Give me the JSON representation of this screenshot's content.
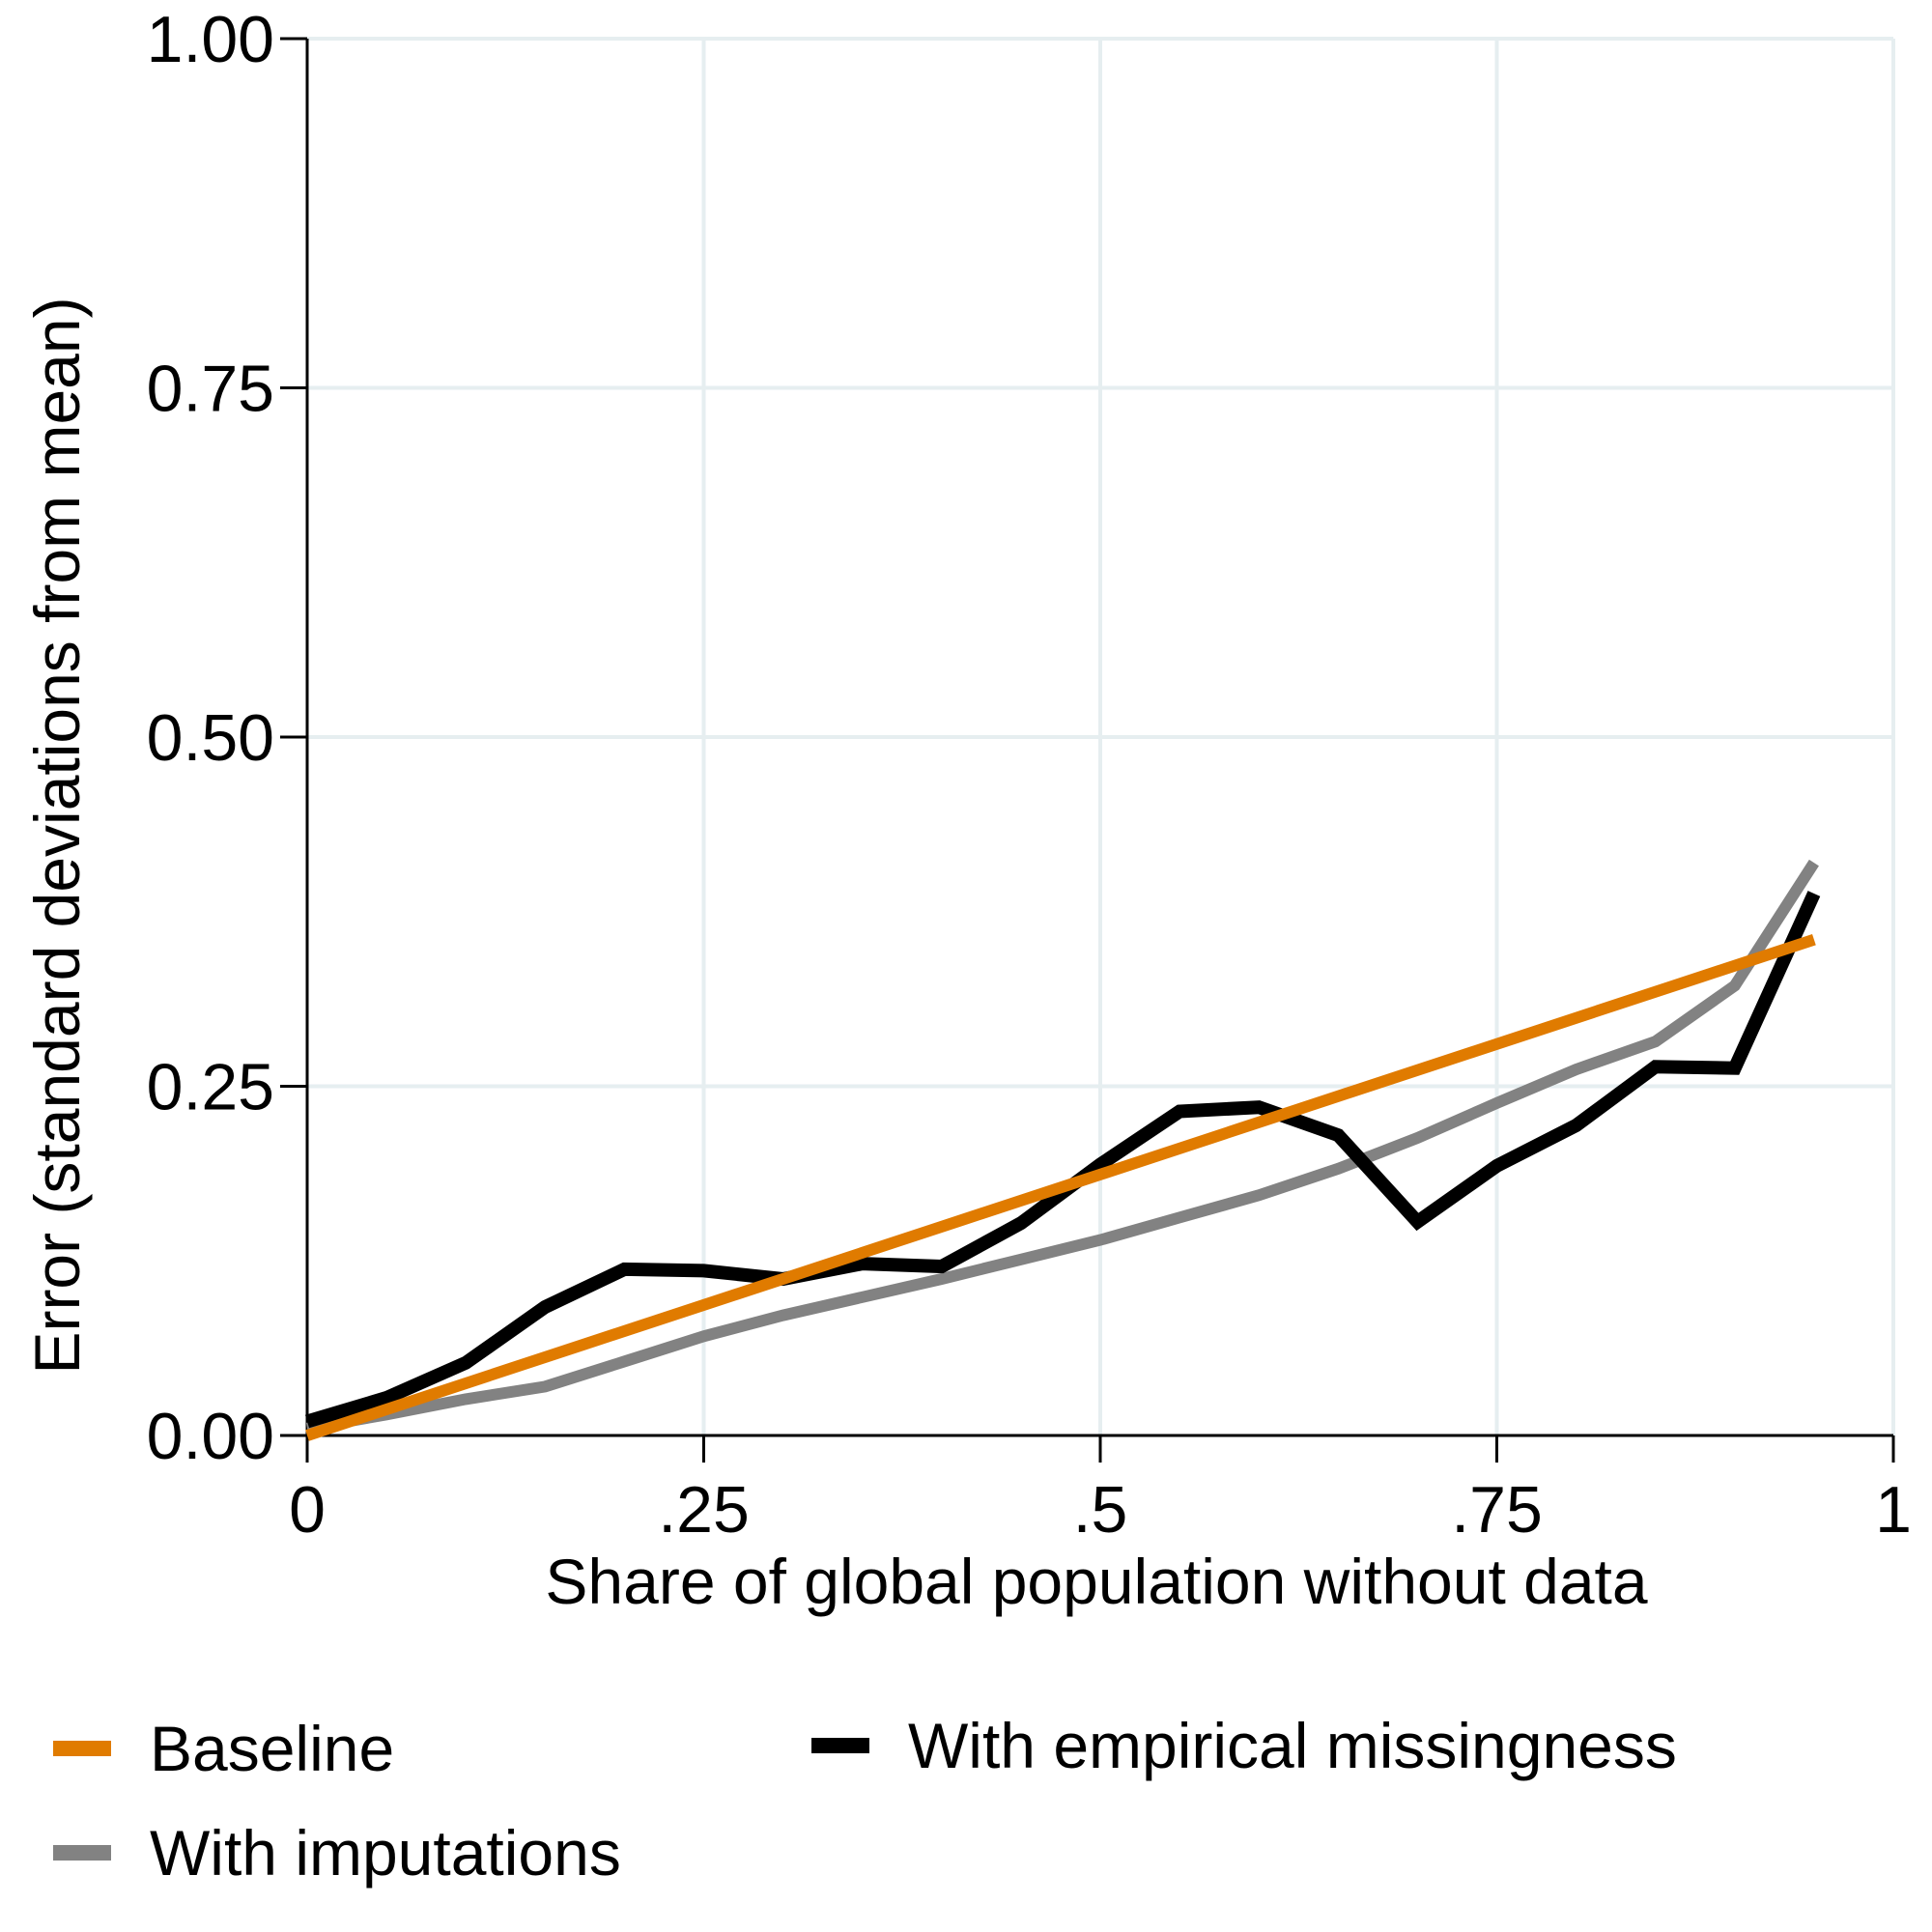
{
  "chart_data": {
    "type": "line",
    "xlabel": "Share of global population without data",
    "ylabel": "Error (standard deviations from mean)",
    "xlim": [
      0,
      1
    ],
    "ylim": [
      0,
      1
    ],
    "x_ticks": [
      0,
      0.25,
      0.5,
      0.75,
      1
    ],
    "x_tick_labels": [
      "0",
      ".25",
      ".5",
      ".75",
      "1"
    ],
    "y_ticks": [
      0,
      0.25,
      0.5,
      0.75,
      1
    ],
    "y_tick_labels": [
      "0.00",
      "0.25",
      "0.50",
      "0.75",
      "1.00"
    ],
    "grid": true,
    "legend_position": "bottom",
    "series": [
      {
        "name": "Baseline",
        "color": "#E07B00",
        "x": [
          0,
          0.95
        ],
        "y": [
          0.0,
          0.355
        ]
      },
      {
        "name": "With empirical missingness",
        "color": "#000000",
        "x": [
          0,
          0.05,
          0.1,
          0.15,
          0.2,
          0.25,
          0.3,
          0.35,
          0.4,
          0.45,
          0.5,
          0.55,
          0.6,
          0.65,
          0.7,
          0.75,
          0.8,
          0.85,
          0.9,
          0.95
        ],
        "y": [
          0.01,
          0.027,
          0.052,
          0.092,
          0.119,
          0.118,
          0.112,
          0.123,
          0.121,
          0.152,
          0.194,
          0.232,
          0.235,
          0.215,
          0.153,
          0.193,
          0.222,
          0.264,
          0.263,
          0.388
        ]
      },
      {
        "name": "With imputations",
        "color": "#828282",
        "x": [
          0,
          0.05,
          0.1,
          0.15,
          0.2,
          0.25,
          0.3,
          0.35,
          0.4,
          0.45,
          0.5,
          0.55,
          0.6,
          0.65,
          0.7,
          0.75,
          0.8,
          0.85,
          0.9,
          0.95
        ],
        "y": [
          0.005,
          0.015,
          0.026,
          0.035,
          0.053,
          0.071,
          0.086,
          0.099,
          0.112,
          0.126,
          0.14,
          0.156,
          0.172,
          0.191,
          0.213,
          0.238,
          0.262,
          0.282,
          0.322,
          0.41
        ]
      }
    ],
    "legend": [
      {
        "label": "Baseline",
        "color": "#E07B00"
      },
      {
        "label": "With empirical missingness",
        "color": "#000000"
      },
      {
        "label": "With imputations",
        "color": "#828282"
      }
    ]
  }
}
